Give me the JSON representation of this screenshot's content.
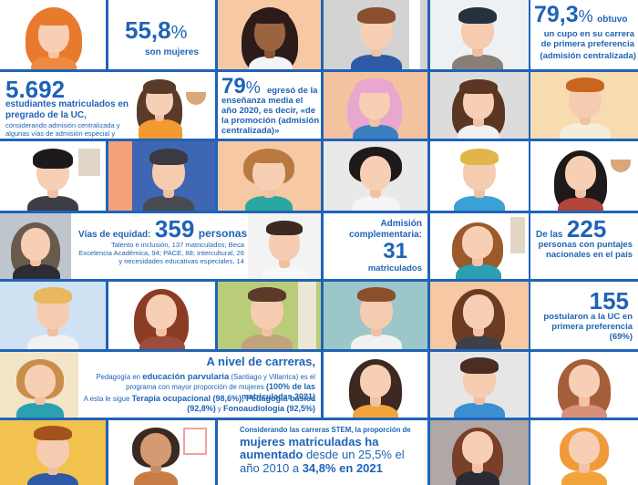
{
  "tiles": {
    "women_pct": {
      "value": "55,8",
      "unit": "%",
      "label": "son mujeres"
    },
    "first_choice": {
      "value": "79,3",
      "unit": "%",
      "suffix": "obtuvo",
      "label": "un cupo en su carrera de primera preferencia",
      "note": "(admisión centralizada)"
    },
    "enrolled": {
      "value": "5.692",
      "label": "estudiantes matriculados en pregrado de la UC,",
      "note": "considerando admisión centralizada y algunas vías de admisión especial y complementaria"
    },
    "graduated_2020": {
      "value": "79",
      "unit": "%",
      "label": "egresó de la enseñanza media el año 2020, es decir, «de la promoción (admisión centralizada)»"
    },
    "equity": {
      "prefix": "Vías de equidad:",
      "value": "359",
      "unit": "personas",
      "detail": "Talento e inclusión, 137 matriculados; Beca Excelencia Académica, 94; PACE, 88; intercultural, 26 y necesidades educativas especiales, 14"
    },
    "complementary": {
      "label": "Admisión complementaria:",
      "value": "31",
      "unit": "matriculados"
    },
    "national_scores": {
      "prefix": "De las",
      "value": "225",
      "label": "personas con puntajes nacionales en el país"
    },
    "applied_first": {
      "value": "155",
      "label": "postularon a la UC en primera preferencia (69%)"
    },
    "careers": {
      "title": "A nivel de carreras,",
      "line1_a": "Pedagogía en ",
      "line1_b": "educación parvularia",
      "line1_c": " (Santiago y Villarrica) es el programa con mayor proporción de mujeres ",
      "line1_d": "(100% de las matriculadas 2021)",
      "line2_a": "A esta le sigue ",
      "line2_b": "Terapia ocupacional (98,6%), Pedagogía básica (92,8%)",
      "line2_c": " y ",
      "line2_d": "Fonoaudiología (92,5%)"
    },
    "stem": {
      "intro": "Considerando las carreras STEM, la proporción de",
      "bold1": "mujeres matriculadas ha aumentado",
      "mid": " desde un 25,5% el año 2010 a ",
      "bold2": "34,8% en 2021"
    }
  },
  "colors": {
    "accent_blue": "#1e63b6",
    "grid_blue": "#1f63b8"
  }
}
